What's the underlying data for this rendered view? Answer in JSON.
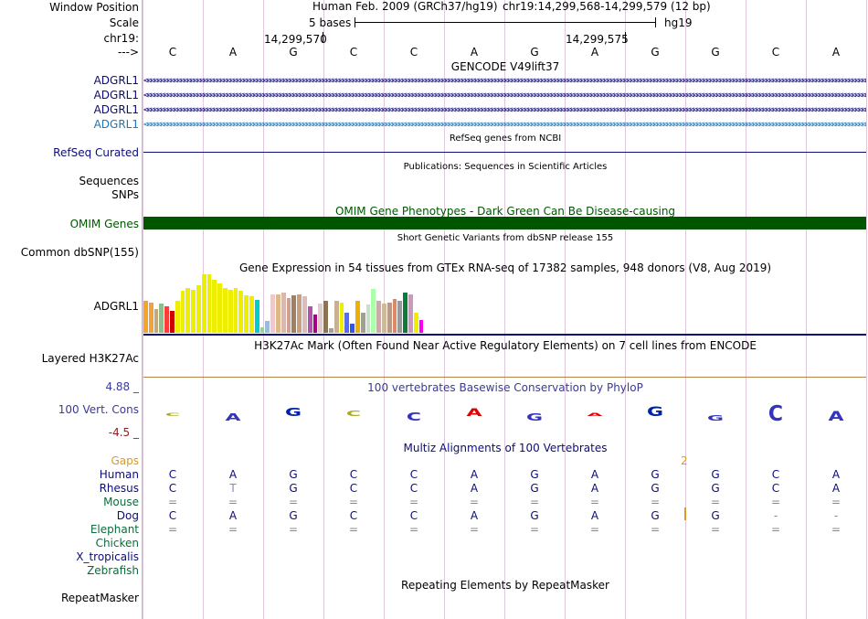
{
  "header": {
    "window_position_label": "Window Position",
    "scale_label": "Scale",
    "chrom_label": "chr19:",
    "strand_label": "--->",
    "assembly": "Human Feb. 2009 (GRCh37/hg19)",
    "position": "chr19:14,299,568-14,299,579 (12 bp)",
    "scale_text": "5 bases",
    "db": "hg19",
    "coord1": "14,299,570",
    "coord2": "14,299,575"
  },
  "reference_bases": [
    "C",
    "A",
    "G",
    "C",
    "C",
    "A",
    "G",
    "A",
    "G",
    "G",
    "C",
    "A"
  ],
  "gencode": {
    "title": "GENCODE V49lift37",
    "rows": [
      {
        "label": "ADGRL1",
        "color": "#0c0c78"
      },
      {
        "label": "ADGRL1",
        "color": "#0c0c78"
      },
      {
        "label": "ADGRL1",
        "color": "#0c0c78"
      },
      {
        "label": "ADGRL1",
        "color": "#1f77b4"
      }
    ]
  },
  "refseq": {
    "title": "RefSeq genes from NCBI",
    "label": "RefSeq Curated"
  },
  "publications": {
    "title": "Publications: Sequences in Scientific Articles",
    "label1": "Sequences",
    "label2": "SNPs"
  },
  "omim": {
    "title": "OMIM Gene Phenotypes - Dark Green Can Be Disease-causing",
    "label": "OMIM Genes",
    "color": "#005500"
  },
  "dbsnp": {
    "title": "Short Genetic Variants from dbSNP release 155",
    "label": "Common dbSNP(155)"
  },
  "gtex": {
    "title": "Gene Expression in 54 tissues from GTEx RNA-seq of 17382 samples, 948 donors (V8, Aug 2019)",
    "label": "ADGRL1",
    "bars": [
      {
        "v": 0.55,
        "c": "#f5a42a"
      },
      {
        "v": 0.52,
        "c": "#f0a23b"
      },
      {
        "v": 0.4,
        "c": "#c8a67c"
      },
      {
        "v": 0.5,
        "c": "#8fbc8f"
      },
      {
        "v": 0.45,
        "c": "#ff3b3b"
      },
      {
        "v": 0.38,
        "c": "#cc0000"
      },
      {
        "v": 0.55,
        "c": "#eeee00"
      },
      {
        "v": 0.72,
        "c": "#eeee00"
      },
      {
        "v": 0.76,
        "c": "#eeee00"
      },
      {
        "v": 0.74,
        "c": "#eeee00"
      },
      {
        "v": 0.82,
        "c": "#eeee00"
      },
      {
        "v": 1.0,
        "c": "#eeee00"
      },
      {
        "v": 1.0,
        "c": "#eeee00"
      },
      {
        "v": 0.9,
        "c": "#eeee00"
      },
      {
        "v": 0.85,
        "c": "#eeee00"
      },
      {
        "v": 0.76,
        "c": "#eeee00"
      },
      {
        "v": 0.74,
        "c": "#eeee00"
      },
      {
        "v": 0.76,
        "c": "#eeee00"
      },
      {
        "v": 0.72,
        "c": "#eeee00"
      },
      {
        "v": 0.64,
        "c": "#eeee00"
      },
      {
        "v": 0.62,
        "c": "#eeee00"
      },
      {
        "v": 0.56,
        "c": "#00cccc"
      },
      {
        "v": 0.1,
        "c": "#9bcc9b"
      },
      {
        "v": 0.2,
        "c": "#99bbdd"
      },
      {
        "v": 0.65,
        "c": "#eec8cc"
      },
      {
        "v": 0.66,
        "c": "#deb887"
      },
      {
        "v": 0.68,
        "c": "#d8b8b0"
      },
      {
        "v": 0.6,
        "c": "#d0a090"
      },
      {
        "v": 0.64,
        "c": "#a08060"
      },
      {
        "v": 0.66,
        "c": "#c8a080"
      },
      {
        "v": 0.63,
        "c": "#ddbbbb"
      },
      {
        "v": 0.45,
        "c": "#b052b0"
      },
      {
        "v": 0.32,
        "c": "#aa0088"
      },
      {
        "v": 0.5,
        "c": "#ddcccc"
      },
      {
        "v": 0.55,
        "c": "#8b7355"
      },
      {
        "v": 0.08,
        "c": "#a0a0a0"
      },
      {
        "v": 0.55,
        "c": "#c8b090"
      },
      {
        "v": 0.52,
        "c": "#eeee00"
      },
      {
        "v": 0.35,
        "c": "#556bff"
      },
      {
        "v": 0.15,
        "c": "#3355ee"
      },
      {
        "v": 0.55,
        "c": "#eeb000"
      },
      {
        "v": 0.35,
        "c": "#a0a090"
      },
      {
        "v": 0.48,
        "c": "#ccddcc"
      },
      {
        "v": 0.75,
        "c": "#aaffaa"
      },
      {
        "v": 0.55,
        "c": "#ccaaaa"
      },
      {
        "v": 0.5,
        "c": "#ccbb99"
      },
      {
        "v": 0.52,
        "c": "#bb9988"
      },
      {
        "v": 0.58,
        "c": "#dd8866"
      },
      {
        "v": 0.55,
        "c": "#999999"
      },
      {
        "v": 0.68,
        "c": "#0c7c3c"
      },
      {
        "v": 0.65,
        "c": "#cc99bb"
      },
      {
        "v": 0.35,
        "c": "#eeee00"
      },
      {
        "v": 0.22,
        "c": "#ff00ee"
      }
    ]
  },
  "h3k27ac": {
    "title": "H3K27Ac Mark (Often Found Near Active Regulatory Elements) on 7 cell lines from ENCODE",
    "label": "Layered H3K27Ac"
  },
  "phylop": {
    "title": "100 vertebrates Basewise Conservation by PhyloP",
    "label": "100 Vert. Cons",
    "ymax": "4.88 _",
    "ymin": "-4.5 _",
    "scores": [
      0.0,
      -0.25,
      0.3,
      0.2,
      -0.3,
      0.28,
      -0.25,
      0.0,
      0.35,
      -0.2,
      -0.55,
      -0.35
    ]
  },
  "multiz": {
    "title": "Multiz Alignments of 100 Vertebrates",
    "gaps_label": "Gaps",
    "gap_count": "2",
    "species": [
      {
        "name": "Human",
        "color": "#0c0c78",
        "seq": [
          "C",
          "A",
          "G",
          "C",
          "C",
          "A",
          "G",
          "A",
          "G",
          "G",
          "C",
          "A"
        ]
      },
      {
        "name": "Rhesus",
        "color": "#0c0c78",
        "seq": [
          "C",
          "T",
          "G",
          "C",
          "C",
          "A",
          "G",
          "A",
          "G",
          "G",
          "C",
          "A"
        ]
      },
      {
        "name": "Mouse",
        "color": "#0c6c3c",
        "seq": [
          "=",
          "=",
          "=",
          "=",
          "=",
          "=",
          "=",
          "=",
          "=",
          "=",
          "=",
          "="
        ]
      },
      {
        "name": "Dog",
        "color": "#0c0c78",
        "seq": [
          "C",
          "A",
          "G",
          "C",
          "C",
          "A",
          "G",
          "A",
          "G",
          "G",
          "-",
          "-"
        ]
      },
      {
        "name": "Elephant",
        "color": "#0c6c3c",
        "seq": [
          "=",
          "=",
          "=",
          "=",
          "=",
          "=",
          "=",
          "=",
          "=",
          "=",
          "=",
          "="
        ]
      },
      {
        "name": "Chicken",
        "color": "#0c6c3c",
        "seq": [
          "",
          "",
          "",
          "",
          "",
          "",
          "",
          "",
          "",
          "",
          "",
          ""
        ]
      },
      {
        "name": "X_tropicalis",
        "color": "#0c0c78",
        "seq": [
          "",
          "",
          "",
          "",
          "",
          "",
          "",
          "",
          "",
          "",
          "",
          ""
        ]
      },
      {
        "name": "Zebrafish",
        "color": "#0c6c3c",
        "seq": [
          "",
          "",
          "",
          "",
          "",
          "",
          "",
          "",
          "",
          "",
          "",
          ""
        ]
      }
    ]
  },
  "repeatmasker": {
    "title": "Repeating Elements by RepeatMasker",
    "label": "RepeatMasker"
  }
}
